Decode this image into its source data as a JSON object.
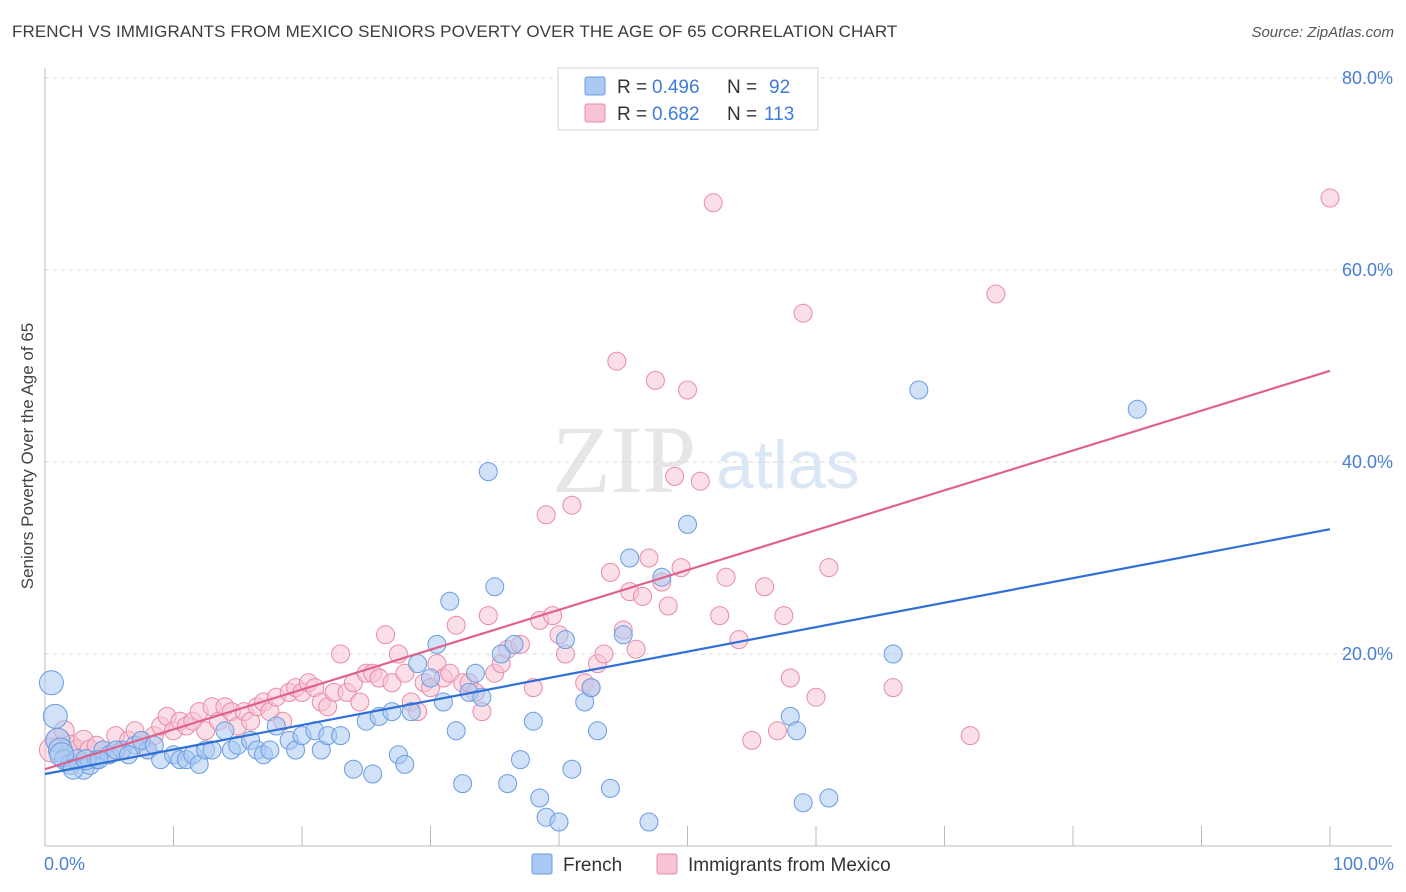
{
  "title": "FRENCH VS IMMIGRANTS FROM MEXICO SENIORS POVERTY OVER THE AGE OF 65 CORRELATION CHART",
  "source": "Source: ZipAtlas.com",
  "watermark": {
    "zip": "ZIP",
    "atlas": "atlas"
  },
  "colors": {
    "french_fill": "#a9c8f2",
    "french_stroke": "#6a9ce0",
    "french_line": "#2f6fd6",
    "mexico_fill": "#f7c4d4",
    "mexico_stroke": "#e98aaa",
    "mexico_line": "#e0608c",
    "grid": "#d8d8d8",
    "axis_label": "#4a7fd4"
  },
  "legend": {
    "french": {
      "r_label": "R = ",
      "r_value": "0.496",
      "n_label": "N = ",
      "n_value": "92"
    },
    "mexico": {
      "r_label": "R = ",
      "r_value": "0.682",
      "n_label": "N = ",
      "n_value": "113"
    }
  },
  "chart_data": {
    "type": "scatter",
    "title": "FRENCH VS IMMIGRANTS FROM MEXICO SENIORS POVERTY OVER THE AGE OF 65 CORRELATION CHART",
    "xlabel": "",
    "ylabel": "Seniors Poverty Over the Age of 65",
    "xlim": [
      0,
      100
    ],
    "ylim": [
      0,
      80
    ],
    "x_tick_labels": [
      "0.0%",
      "100.0%"
    ],
    "y_ticks": [
      20,
      40,
      60,
      80
    ],
    "y_tick_labels": [
      "20.0%",
      "40.0%",
      "60.0%",
      "80.0%"
    ],
    "grid": true,
    "legend_position": "top-center",
    "series": [
      {
        "name": "French",
        "trend": {
          "x": [
            0,
            100
          ],
          "y": [
            7.5,
            33.0
          ]
        },
        "points": [
          [
            0.5,
            17
          ],
          [
            0.8,
            13.5
          ],
          [
            1,
            11
          ],
          [
            1.2,
            10
          ],
          [
            1.5,
            9
          ],
          [
            2,
            8.5
          ],
          [
            2.5,
            9
          ],
          [
            3,
            8
          ],
          [
            3.5,
            8.5
          ],
          [
            4,
            9
          ],
          [
            4.5,
            10
          ],
          [
            5,
            9.5
          ],
          [
            6,
            10
          ],
          [
            7,
            10.5
          ],
          [
            8,
            10
          ],
          [
            9,
            9
          ],
          [
            10,
            9.5
          ],
          [
            10.5,
            9
          ],
          [
            11,
            9
          ],
          [
            11.5,
            9.5
          ],
          [
            12,
            8.5
          ],
          [
            12.5,
            10
          ],
          [
            13,
            10
          ],
          [
            14,
            12
          ],
          [
            14.5,
            10
          ],
          [
            15,
            10.5
          ],
          [
            16,
            11
          ],
          [
            16.5,
            10
          ],
          [
            17,
            9.5
          ],
          [
            17.5,
            10
          ],
          [
            18,
            12.5
          ],
          [
            19,
            11
          ],
          [
            19.5,
            10
          ],
          [
            20,
            11.5
          ],
          [
            21,
            12
          ],
          [
            21.5,
            10
          ],
          [
            22,
            11.5
          ],
          [
            23,
            11.5
          ],
          [
            24,
            8
          ],
          [
            25,
            13
          ],
          [
            25.5,
            7.5
          ],
          [
            26,
            13.5
          ],
          [
            27,
            14
          ],
          [
            27.5,
            9.5
          ],
          [
            28,
            8.5
          ],
          [
            28.5,
            14
          ],
          [
            29,
            19
          ],
          [
            30,
            17.5
          ],
          [
            30.5,
            21
          ],
          [
            31,
            15
          ],
          [
            31.5,
            25.5
          ],
          [
            32,
            12
          ],
          [
            32.5,
            6.5
          ],
          [
            33,
            16
          ],
          [
            33.5,
            18
          ],
          [
            34,
            15.5
          ],
          [
            34.5,
            39
          ],
          [
            35,
            27
          ],
          [
            35.5,
            20
          ],
          [
            36,
            6.5
          ],
          [
            36.5,
            21
          ],
          [
            37,
            9
          ],
          [
            38,
            13
          ],
          [
            38.5,
            5
          ],
          [
            39,
            3
          ],
          [
            40,
            2.5
          ],
          [
            40.5,
            21.5
          ],
          [
            41,
            8
          ],
          [
            42,
            15
          ],
          [
            42.5,
            16.5
          ],
          [
            43,
            12
          ],
          [
            44,
            6
          ],
          [
            45,
            22
          ],
          [
            45.5,
            30
          ],
          [
            47,
            2.5
          ],
          [
            48,
            28
          ],
          [
            50,
            33.5
          ],
          [
            58,
            13.5
          ],
          [
            58.5,
            12
          ],
          [
            59,
            4.5
          ],
          [
            61,
            5
          ],
          [
            66,
            20
          ],
          [
            68,
            47.5
          ],
          [
            85,
            45.5
          ],
          [
            1.3,
            9.5
          ],
          [
            2.2,
            8
          ],
          [
            3.2,
            9
          ],
          [
            4.2,
            9
          ],
          [
            5.5,
            10
          ],
          [
            6.5,
            9.5
          ],
          [
            7.5,
            11
          ],
          [
            8.5,
            10.5
          ]
        ]
      },
      {
        "name": "Immigrants from Mexico",
        "trend": {
          "x": [
            0,
            100
          ],
          "y": [
            8.0,
            49.5
          ]
        },
        "points": [
          [
            0.5,
            10
          ],
          [
            1,
            11
          ],
          [
            1.5,
            12
          ],
          [
            2,
            10.5
          ],
          [
            2.5,
            10
          ],
          [
            3,
            11
          ],
          [
            3.5,
            10
          ],
          [
            4,
            10.5
          ],
          [
            4.5,
            10
          ],
          [
            5,
            9.5
          ],
          [
            5.5,
            11.5
          ],
          [
            6,
            10
          ],
          [
            6.5,
            11
          ],
          [
            7,
            12
          ],
          [
            7.5,
            11
          ],
          [
            8,
            10
          ],
          [
            8.5,
            11.5
          ],
          [
            9,
            12.5
          ],
          [
            9.5,
            13.5
          ],
          [
            10,
            12
          ],
          [
            10.5,
            13
          ],
          [
            11,
            12.5
          ],
          [
            11.5,
            13
          ],
          [
            12,
            14
          ],
          [
            12.5,
            12
          ],
          [
            13,
            14.5
          ],
          [
            13.5,
            13
          ],
          [
            14,
            14.5
          ],
          [
            14.5,
            14
          ],
          [
            15,
            12.5
          ],
          [
            15.5,
            14
          ],
          [
            16,
            13
          ],
          [
            16.5,
            14.5
          ],
          [
            17,
            15
          ],
          [
            17.5,
            14
          ],
          [
            18,
            15.5
          ],
          [
            18.5,
            13
          ],
          [
            19,
            16
          ],
          [
            19.5,
            16.5
          ],
          [
            20,
            16
          ],
          [
            20.5,
            17
          ],
          [
            21,
            16.5
          ],
          [
            21.5,
            15
          ],
          [
            22,
            14.5
          ],
          [
            22.5,
            16
          ],
          [
            23,
            20
          ],
          [
            23.5,
            16
          ],
          [
            24,
            17
          ],
          [
            24.5,
            15
          ],
          [
            25,
            18
          ],
          [
            25.5,
            18
          ],
          [
            26,
            17.5
          ],
          [
            26.5,
            22
          ],
          [
            27,
            17
          ],
          [
            27.5,
            20
          ],
          [
            28,
            18
          ],
          [
            28.5,
            15
          ],
          [
            29,
            14
          ],
          [
            29.5,
            17
          ],
          [
            30,
            16.5
          ],
          [
            30.5,
            19
          ],
          [
            31,
            17.5
          ],
          [
            31.5,
            18
          ],
          [
            32,
            23
          ],
          [
            32.5,
            17
          ],
          [
            33,
            17
          ],
          [
            33.5,
            16
          ],
          [
            34,
            14
          ],
          [
            34.5,
            24
          ],
          [
            35,
            18
          ],
          [
            35.5,
            19
          ],
          [
            36,
            20.5
          ],
          [
            37,
            21
          ],
          [
            38,
            16.5
          ],
          [
            38.5,
            23.5
          ],
          [
            39,
            34.5
          ],
          [
            39.5,
            24
          ],
          [
            40,
            22
          ],
          [
            40.5,
            20
          ],
          [
            41,
            35.5
          ],
          [
            42,
            17
          ],
          [
            42.5,
            16.5
          ],
          [
            43,
            19
          ],
          [
            43.5,
            20
          ],
          [
            44,
            28.5
          ],
          [
            44.5,
            50.5
          ],
          [
            45,
            22.5
          ],
          [
            45.5,
            26.5
          ],
          [
            46,
            20.5
          ],
          [
            46.5,
            26
          ],
          [
            47,
            30
          ],
          [
            47.5,
            48.5
          ],
          [
            48,
            27.5
          ],
          [
            48.5,
            25
          ],
          [
            49,
            38.5
          ],
          [
            49.5,
            29
          ],
          [
            50,
            47.5
          ],
          [
            51,
            38
          ],
          [
            52,
            67
          ],
          [
            52.5,
            24
          ],
          [
            53,
            28
          ],
          [
            54,
            21.5
          ],
          [
            55,
            11
          ],
          [
            56,
            27
          ],
          [
            57,
            12
          ],
          [
            57.5,
            24
          ],
          [
            58,
            17.5
          ],
          [
            59,
            55.5
          ],
          [
            60,
            15.5
          ],
          [
            61,
            29
          ],
          [
            66,
            16.5
          ],
          [
            72,
            11.5
          ],
          [
            74,
            57.5
          ],
          [
            100,
            67.5
          ]
        ]
      }
    ]
  },
  "bottom_legend": {
    "french": "French",
    "mexico": "Immigrants from Mexico"
  }
}
